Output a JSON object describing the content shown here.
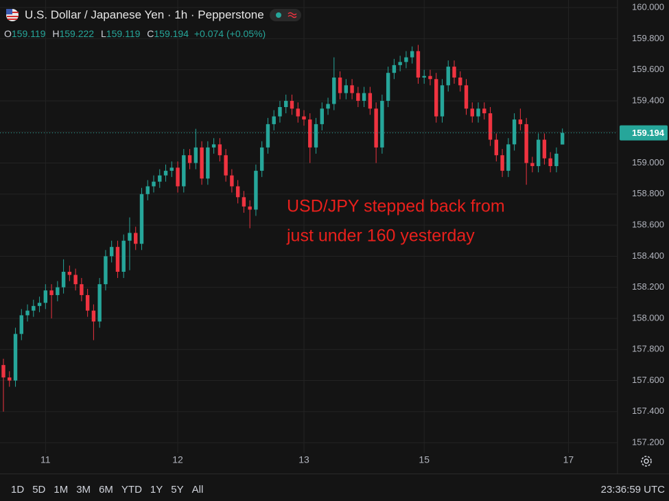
{
  "chart_data": {
    "type": "candlestick",
    "title": "U.S. Dollar / Japanese Yen · 1h · Pepperstone",
    "ohlc_letters": [
      "O",
      "H",
      "L",
      "C"
    ],
    "change": "+0.074",
    "change_pct": "(+0.05%)",
    "annotation": [
      "USD/JPY stepped back from",
      "just under 160 yesterday"
    ],
    "up_color": "#26a69a",
    "down_color": "#ef3340",
    "annotation_color": "#e8201c",
    "grid": true,
    "ylim": [
      157.134,
      160.049
    ],
    "yticks": [
      {
        "value": 157.2,
        "label": "157.200"
      },
      {
        "value": 157.4,
        "label": "157.400"
      },
      {
        "value": 157.6,
        "label": "157.600"
      },
      {
        "value": 157.8,
        "label": "157.800"
      },
      {
        "value": 158.0,
        "label": "158.000"
      },
      {
        "value": 158.2,
        "label": "158.200"
      },
      {
        "value": 158.4,
        "label": "158.400"
      },
      {
        "value": 158.6,
        "label": "158.600"
      },
      {
        "value": 158.8,
        "label": "158.800"
      },
      {
        "value": 159.0,
        "label": "159.000"
      },
      {
        "value": 159.2,
        "label": "159.200"
      },
      {
        "value": 159.4,
        "label": "159.400"
      },
      {
        "value": 159.6,
        "label": "159.600"
      },
      {
        "value": 159.8,
        "label": "159.800"
      },
      {
        "value": 160.0,
        "label": "160.000"
      }
    ],
    "categories": [
      null,
      null,
      null,
      null,
      null,
      null,
      null,
      "11",
      null,
      null,
      null,
      null,
      null,
      null,
      null,
      null,
      null,
      null,
      null,
      null,
      null,
      null,
      null,
      null,
      null,
      null,
      null,
      null,
      null,
      "12",
      null,
      null,
      null,
      null,
      null,
      null,
      null,
      null,
      null,
      null,
      null,
      null,
      null,
      null,
      null,
      null,
      null,
      null,
      null,
      null,
      "13",
      null,
      null,
      null,
      null,
      null,
      null,
      null,
      null,
      null,
      null,
      null,
      null,
      null,
      null,
      null,
      null,
      null,
      null,
      null,
      "15",
      null,
      null,
      null,
      null,
      null,
      null,
      null,
      null,
      null,
      null,
      null,
      null,
      null,
      null,
      null,
      null,
      null,
      null,
      null,
      null,
      null,
      null,
      null,
      "17"
    ],
    "open": [
      157.7,
      157.62,
      157.6,
      157.9,
      158.02,
      158.05,
      158.08,
      158.1,
      158.18,
      158.15,
      158.2,
      158.3,
      158.28,
      158.22,
      158.15,
      158.05,
      157.98,
      158.22,
      158.4,
      158.46,
      158.3,
      158.5,
      158.55,
      158.48,
      158.8,
      158.85,
      158.88,
      158.92,
      158.95,
      158.97,
      158.85,
      159.05,
      159.0,
      159.1,
      158.9,
      159.1,
      159.12,
      159.05,
      158.92,
      158.85,
      158.78,
      158.72,
      158.7,
      158.95,
      159.1,
      159.25,
      159.3,
      159.36,
      159.4,
      159.35,
      159.3,
      159.28,
      159.1,
      159.25,
      159.35,
      159.38,
      159.55,
      159.45,
      159.5,
      159.45,
      159.4,
      159.45,
      159.35,
      159.1,
      159.4,
      159.58,
      159.63,
      159.65,
      159.68,
      159.72,
      159.55,
      159.56,
      159.54,
      159.3,
      159.5,
      159.62,
      159.55,
      159.5,
      159.35,
      159.3,
      159.35,
      159.32,
      159.15,
      159.05,
      158.95,
      159.12,
      159.28,
      159.25,
      159.0,
      158.98,
      159.15,
      159.03,
      158.98,
      159.119,
      null
    ],
    "high": [
      157.74,
      157.66,
      157.94,
      158.06,
      158.09,
      158.12,
      158.14,
      158.22,
      158.22,
      158.24,
      158.38,
      158.34,
      158.32,
      158.26,
      158.19,
      158.09,
      158.26,
      158.44,
      158.5,
      158.5,
      158.54,
      158.65,
      158.59,
      158.84,
      158.89,
      158.92,
      158.96,
      158.99,
      159.01,
      159.01,
      159.09,
      159.09,
      159.22,
      159.14,
      159.14,
      159.16,
      159.16,
      159.09,
      158.96,
      158.89,
      158.82,
      158.76,
      158.99,
      159.14,
      159.29,
      159.34,
      159.4,
      159.44,
      159.44,
      159.39,
      159.34,
      159.32,
      159.29,
      159.39,
      159.42,
      159.68,
      159.59,
      159.54,
      159.54,
      159.49,
      159.49,
      159.49,
      159.39,
      159.44,
      159.62,
      159.67,
      159.69,
      159.72,
      159.75,
      159.76,
      159.6,
      159.6,
      159.58,
      159.54,
      159.66,
      159.66,
      159.59,
      159.54,
      159.39,
      159.39,
      159.39,
      159.36,
      159.19,
      159.09,
      159.16,
      159.32,
      159.35,
      159.29,
      159.04,
      159.19,
      159.19,
      159.07,
      159.1,
      159.222,
      null
    ],
    "low": [
      157.4,
      157.56,
      157.56,
      157.86,
      157.98,
      158.01,
      158.04,
      158.06,
      158.0,
      158.11,
      158.16,
      158.24,
      158.18,
      158.11,
      158.01,
      157.86,
      157.94,
      158.18,
      158.36,
      158.26,
      158.26,
      158.31,
      158.44,
      158.44,
      158.76,
      158.81,
      158.84,
      158.88,
      158.91,
      158.81,
      158.81,
      158.96,
      158.96,
      158.86,
      158.86,
      159.06,
      159.01,
      158.88,
      158.81,
      158.74,
      158.68,
      158.58,
      158.66,
      158.91,
      159.06,
      159.21,
      159.26,
      159.32,
      159.31,
      159.26,
      159.24,
      159.0,
      159.06,
      159.21,
      159.31,
      159.34,
      159.41,
      159.41,
      159.41,
      159.36,
      159.36,
      159.31,
      159.0,
      159.06,
      159.36,
      159.54,
      159.59,
      159.61,
      159.64,
      159.51,
      159.51,
      159.5,
      159.26,
      159.26,
      159.46,
      159.51,
      159.46,
      159.31,
      159.26,
      159.26,
      159.28,
      159.11,
      159.01,
      158.91,
      158.91,
      159.08,
      159.21,
      158.86,
      158.94,
      158.94,
      158.99,
      158.94,
      158.94,
      159.119,
      null
    ],
    "close": [
      157.62,
      157.6,
      157.9,
      158.02,
      158.05,
      158.08,
      158.1,
      158.18,
      158.15,
      158.2,
      158.3,
      158.28,
      158.22,
      158.15,
      158.05,
      157.98,
      158.22,
      158.4,
      158.46,
      158.3,
      158.5,
      158.55,
      158.48,
      158.8,
      158.85,
      158.88,
      158.92,
      158.95,
      158.97,
      158.85,
      159.05,
      159.0,
      159.1,
      158.9,
      159.1,
      159.12,
      159.05,
      158.92,
      158.85,
      158.78,
      158.72,
      158.7,
      158.95,
      159.1,
      159.25,
      159.3,
      159.36,
      159.4,
      159.35,
      159.3,
      159.28,
      159.1,
      159.25,
      159.35,
      159.38,
      159.55,
      159.45,
      159.5,
      159.45,
      159.4,
      159.45,
      159.35,
      159.1,
      159.4,
      159.58,
      159.63,
      159.65,
      159.68,
      159.72,
      159.55,
      159.56,
      159.54,
      159.3,
      159.5,
      159.62,
      159.55,
      159.5,
      159.35,
      159.3,
      159.35,
      159.32,
      159.15,
      159.05,
      158.95,
      159.12,
      159.28,
      159.25,
      159.0,
      158.98,
      159.15,
      159.03,
      158.98,
      159.06,
      159.194,
      null
    ],
    "ranges": [
      "1D",
      "5D",
      "1M",
      "3M",
      "6M",
      "YTD",
      "1Y",
      "5Y",
      "All"
    ],
    "time": "23:36:59 UTC"
  }
}
